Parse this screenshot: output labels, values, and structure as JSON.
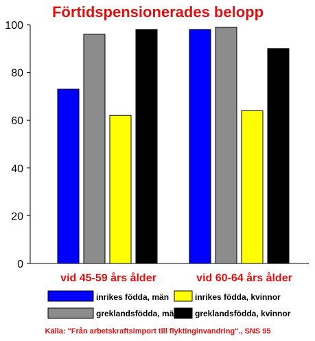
{
  "chart_data": {
    "type": "bar",
    "title": "Förtidspensionerades belopp",
    "categories": [
      "vid 45-59 års ålder",
      "vid 60-64 års ålder"
    ],
    "series": [
      {
        "name": "inrikes födda, män",
        "color": "#0000ff",
        "values": [
          73,
          98
        ]
      },
      {
        "name": "greklandsfödda, män",
        "color": "#8c8c8c",
        "values": [
          96,
          99
        ]
      },
      {
        "name": "inrikes födda, kvinnor",
        "color": "#ffff00",
        "values": [
          62,
          64
        ]
      },
      {
        "name": "greklandsfödda, kvinnor",
        "color": "#000000",
        "values": [
          98,
          90
        ]
      }
    ],
    "ylim": [
      0,
      100
    ],
    "yticks": [
      "0",
      "20",
      "40",
      "60",
      "80",
      "100"
    ],
    "legend_position": "bottom",
    "grid": false,
    "source": "Källa:  \"Från arbetskraftsimport till flyktinginvandring\"., SNS 95"
  }
}
